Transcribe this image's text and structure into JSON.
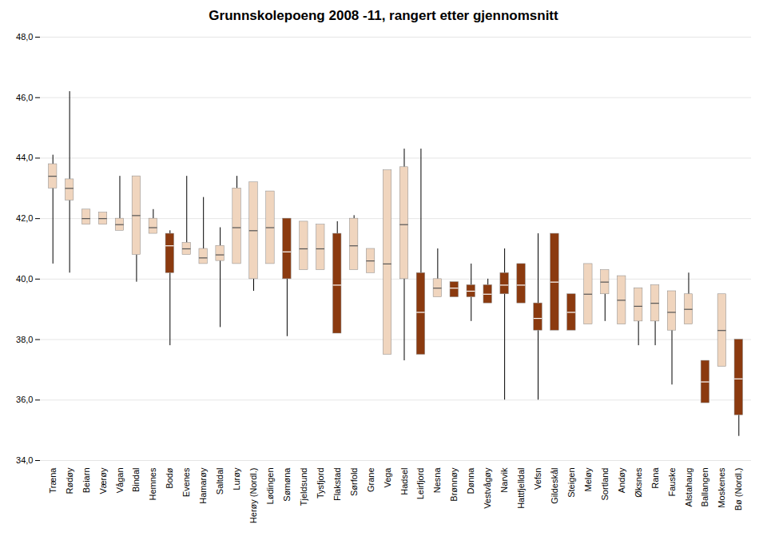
{
  "chart_data": {
    "type": "box",
    "title": "Grunnskolepoeng 2008 -11, rangert etter gjennomsnitt",
    "categories": [
      "Træna",
      "Rødøy",
      "Beiarn",
      "Værøy",
      "Vågan",
      "Bindal",
      "Hemnes",
      "Bodø",
      "Evenes",
      "Hamarøy",
      "Saltdal",
      "Lurøy",
      "Herøy (Nordl.)",
      "Lødingen",
      "Sømøna",
      "Tjeldsund",
      "Tysfjord",
      "Flakstad",
      "Sørfold",
      "Grane",
      "Vega",
      "Hadsel",
      "Leirfjord",
      "Nesna",
      "Brønnøy",
      "Dønna",
      "Vestvågøy",
      "Narvik",
      "Hattfjelldal",
      "Vefsn",
      "Gildeskål",
      "Steigen",
      "Meløy",
      "Sortland",
      "Andøy",
      "Øksnes",
      "Rana",
      "Fauske",
      "Alstahaug",
      "Ballangen",
      "Moskenes",
      "Bø (Nordl.)"
    ],
    "whisker_lo": [
      40.5,
      40.2,
      41.8,
      41.8,
      41.6,
      39.9,
      41.5,
      37.8,
      40.8,
      40.5,
      38.4,
      40.5,
      39.6,
      40.5,
      38.1,
      40.3,
      40.3,
      38.2,
      40.3,
      40.2,
      37.5,
      37.3,
      37.5,
      39.4,
      39.4,
      38.6,
      39.2,
      36.0,
      39.2,
      36.0,
      38.3,
      38.3,
      38.5,
      38.6,
      38.5,
      37.8,
      37.8,
      36.5,
      38.5,
      35.9,
      37.1,
      34.8
    ],
    "q1": [
      43.0,
      42.6,
      41.8,
      41.8,
      41.6,
      40.8,
      41.5,
      40.2,
      40.8,
      40.5,
      40.6,
      40.5,
      40.0,
      40.5,
      40.0,
      40.3,
      40.3,
      38.2,
      40.3,
      40.2,
      37.5,
      40.0,
      37.5,
      39.4,
      39.4,
      39.4,
      39.2,
      39.5,
      39.2,
      38.3,
      38.3,
      38.3,
      38.5,
      39.5,
      38.5,
      38.6,
      38.6,
      38.3,
      38.5,
      35.9,
      37.1,
      35.5
    ],
    "median": [
      43.4,
      43.0,
      42.0,
      42.0,
      41.8,
      42.1,
      41.7,
      41.1,
      41.0,
      40.7,
      40.8,
      41.7,
      41.6,
      41.7,
      40.9,
      41.0,
      41.0,
      39.8,
      41.1,
      40.6,
      40.5,
      41.8,
      38.9,
      39.7,
      39.7,
      39.6,
      39.5,
      39.8,
      39.8,
      38.7,
      39.9,
      38.9,
      39.5,
      39.9,
      39.3,
      39.1,
      39.2,
      38.9,
      39.0,
      36.6,
      38.3,
      36.7
    ],
    "q3": [
      43.8,
      43.3,
      42.3,
      42.2,
      42.0,
      43.4,
      42.0,
      41.5,
      41.2,
      41.0,
      41.1,
      43.0,
      43.2,
      42.9,
      42.0,
      41.9,
      41.8,
      41.5,
      42.0,
      41.0,
      43.6,
      43.7,
      40.2,
      40.0,
      39.9,
      39.8,
      39.8,
      40.2,
      40.5,
      39.2,
      41.5,
      39.5,
      40.5,
      40.3,
      40.1,
      39.7,
      39.8,
      39.6,
      39.5,
      37.3,
      39.5,
      38.0
    ],
    "whisker_hi": [
      44.1,
      46.2,
      42.3,
      42.2,
      43.4,
      43.4,
      42.3,
      41.6,
      43.4,
      42.7,
      41.7,
      43.4,
      43.2,
      42.9,
      42.0,
      41.9,
      41.8,
      41.9,
      42.1,
      41.0,
      43.6,
      44.3,
      44.3,
      41.0,
      39.9,
      40.5,
      40.0,
      41.0,
      40.5,
      41.5,
      41.5,
      39.5,
      40.5,
      40.3,
      40.1,
      39.7,
      39.8,
      39.6,
      40.2,
      37.3,
      39.5,
      38.0
    ],
    "colors": [
      "#f0d5be",
      "#f0d5be",
      "#f0d5be",
      "#f0d5be",
      "#f0d5be",
      "#f0d5be",
      "#f0d5be",
      "#8b3a0f",
      "#f0d5be",
      "#f0d5be",
      "#f0d5be",
      "#f0d5be",
      "#f0d5be",
      "#f0d5be",
      "#8b3a0f",
      "#f0d5be",
      "#f0d5be",
      "#8b3a0f",
      "#f0d5be",
      "#f0d5be",
      "#f0d5be",
      "#f0d5be",
      "#8b3a0f",
      "#f0d5be",
      "#8b3a0f",
      "#8b3a0f",
      "#8b3a0f",
      "#8b3a0f",
      "#8b3a0f",
      "#8b3a0f",
      "#8b3a0f",
      "#8b3a0f",
      "#f0d5be",
      "#f0d5be",
      "#f0d5be",
      "#f0d5be",
      "#f0d5be",
      "#f0d5be",
      "#f0d5be",
      "#8b3a0f",
      "#f0d5be",
      "#8b3a0f"
    ],
    "ylim": [
      34.0,
      48.0
    ],
    "yticks": [
      {
        "value": 34.0,
        "label": "34,0"
      },
      {
        "value": 36.0,
        "label": "36,0"
      },
      {
        "value": 38.0,
        "label": "38,0"
      },
      {
        "value": 40.0,
        "label": "40,0"
      },
      {
        "value": 42.0,
        "label": "42,0"
      },
      {
        "value": 44.0,
        "label": "44,0"
      },
      {
        "value": 46.0,
        "label": "46,0"
      },
      {
        "value": 48.0,
        "label": "48,0"
      }
    ],
    "grid": true
  }
}
